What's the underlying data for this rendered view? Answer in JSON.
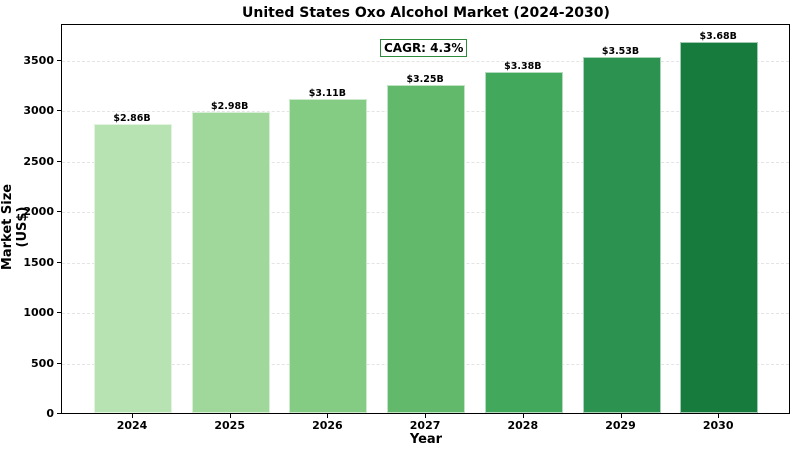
{
  "chart_data": {
    "type": "bar",
    "title": "United States Oxo Alcohol Market (2024-2030)",
    "xlabel": "Year",
    "ylabel": "Market Size (US$)",
    "categories": [
      "2024",
      "2025",
      "2026",
      "2027",
      "2028",
      "2029",
      "2030"
    ],
    "values": [
      2860,
      2980,
      3110,
      3250,
      3380,
      3530,
      3680
    ],
    "value_labels": [
      "$2.86B",
      "$2.98B",
      "$3.11B",
      "$3.25B",
      "$3.38B",
      "$3.53B",
      "$3.68B"
    ],
    "colors": [
      "#b7e2b1",
      "#a0d89b",
      "#84cb83",
      "#63b96b",
      "#42a85c",
      "#2b934f",
      "#177b3d"
    ],
    "ylim": [
      0,
      3864
    ],
    "yticks": [
      0,
      500,
      1000,
      1500,
      2000,
      2500,
      3000,
      3500
    ],
    "grid": true,
    "grid_style": "dashed, horizontal",
    "annotation": "CAGR: 4.3%"
  },
  "labels": {
    "title": "United States Oxo Alcohol Market (2024-2030)",
    "xlabel": "Year",
    "ylabel": "Market Size (US$)",
    "cagr": "CAGR: 4.3%"
  }
}
